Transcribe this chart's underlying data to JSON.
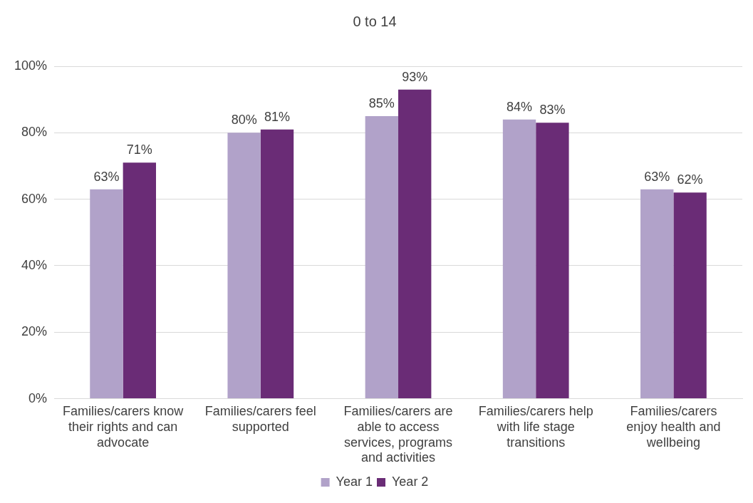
{
  "chart_data": {
    "type": "bar",
    "title": "0 to 14",
    "categories": [
      "Families/carers know their rights and can advocate",
      "Families/carers feel supported",
      "Families/carers are able to access services, programs and activities",
      "Families/carers help with life stage transitions",
      "Families/carers enjoy health and wellbeing"
    ],
    "series": [
      {
        "name": "Year 1",
        "color": "#b1a2c9",
        "values": [
          63,
          80,
          85,
          84,
          63
        ],
        "value_labels": [
          "63%",
          "80%",
          "85%",
          "84%",
          "63%"
        ]
      },
      {
        "name": "Year 2",
        "color": "#6a2c76",
        "values": [
          71,
          81,
          93,
          83,
          62
        ],
        "value_labels": [
          "71%",
          "81%",
          "93%",
          "83%",
          "62%"
        ]
      }
    ],
    "ylim": [
      0,
      100
    ],
    "yticks": [
      {
        "value": 0,
        "label": "0%"
      },
      {
        "value": 20,
        "label": "20%"
      },
      {
        "value": 40,
        "label": "40%"
      },
      {
        "value": 60,
        "label": "60%"
      },
      {
        "value": 80,
        "label": "80%"
      },
      {
        "value": 100,
        "label": "100%"
      }
    ],
    "grid": "y",
    "legend": "bottom"
  }
}
